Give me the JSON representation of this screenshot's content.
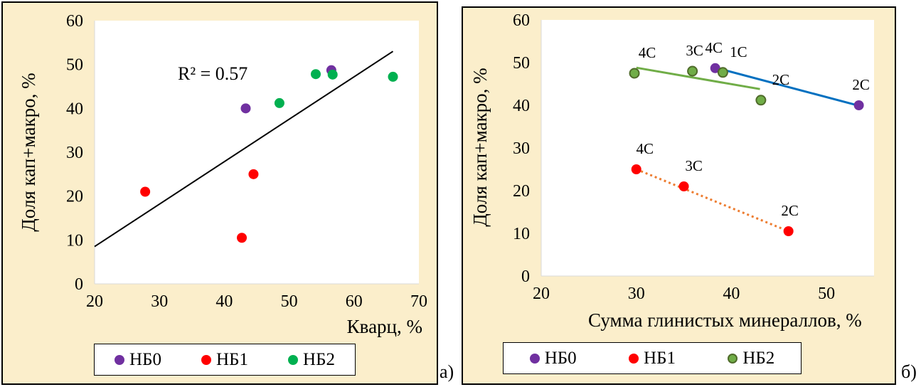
{
  "chart_data": [
    {
      "type": "scatter",
      "panel_label": "а)",
      "xlabel": "Кварц, %",
      "ylabel": "Доля кап+макро, %",
      "xlim": [
        20,
        70
      ],
      "ylim": [
        0,
        60
      ],
      "xticks": [
        20,
        30,
        40,
        50,
        60,
        70
      ],
      "yticks": [
        0,
        10,
        20,
        30,
        40,
        50,
        60
      ],
      "annotation": "R² = 0.57",
      "trendline": {
        "x": [
          20,
          66
        ],
        "y": [
          8.5,
          53
        ]
      },
      "series": [
        {
          "name": "НБ0",
          "color": "#7030a0",
          "points": [
            [
              43.3,
              40
            ],
            [
              56.5,
              48.7
            ]
          ]
        },
        {
          "name": "НБ1",
          "color": "#ff0000",
          "points": [
            [
              27.8,
              21
            ],
            [
              44.5,
              25
            ],
            [
              42.7,
              10.5
            ]
          ]
        },
        {
          "name": "НБ2",
          "color": "#00b050",
          "points": [
            [
              48.5,
              41.2
            ],
            [
              54.1,
              47.8
            ],
            [
              56.7,
              47.7
            ],
            [
              66,
              47.2
            ]
          ]
        }
      ],
      "legend": [
        "НБ0",
        "НБ1",
        "НБ2"
      ]
    },
    {
      "type": "scatter",
      "panel_label": "б)",
      "xlabel": "Сумма глинистых минераллов, %",
      "ylabel": "Доля кап+макро, %",
      "xlim": [
        20,
        55
      ],
      "ylim": [
        0,
        60
      ],
      "xticks": [
        20,
        30,
        40,
        50
      ],
      "yticks": [
        0,
        10,
        20,
        30,
        40,
        50,
        60
      ],
      "series": [
        {
          "name": "НБ0",
          "color": "#7030a0",
          "points": [
            [
              38.3,
              48.7,
              "4C"
            ],
            [
              53.4,
              40,
              "2C"
            ]
          ]
        },
        {
          "name": "НБ1",
          "color": "#ff0000",
          "points": [
            [
              30,
              25,
              "4C"
            ],
            [
              35,
              21,
              "3C"
            ],
            [
              46,
              10.5,
              "2C"
            ]
          ]
        },
        {
          "name": "НБ2",
          "color": "#70ad47",
          "points": [
            [
              29.8,
              47.5,
              "4C"
            ],
            [
              35.9,
              48,
              "3C"
            ],
            [
              39.1,
              47.7,
              "1C"
            ],
            [
              43.1,
              41.2,
              "2C"
            ]
          ]
        }
      ],
      "trendlines": [
        {
          "color": "#0070c0",
          "dash": false,
          "x": [
            39,
            53.4
          ],
          "y": [
            48.4,
            39.9
          ]
        },
        {
          "color": "#70ad47",
          "dash": false,
          "x": [
            30,
            43
          ],
          "y": [
            48.8,
            43.8
          ]
        },
        {
          "color": "#ed7d31",
          "dash": true,
          "x": [
            30,
            46
          ],
          "y": [
            25,
            10.5
          ]
        }
      ],
      "legend": [
        "НБ0",
        "НБ1",
        "НБ2"
      ]
    }
  ]
}
